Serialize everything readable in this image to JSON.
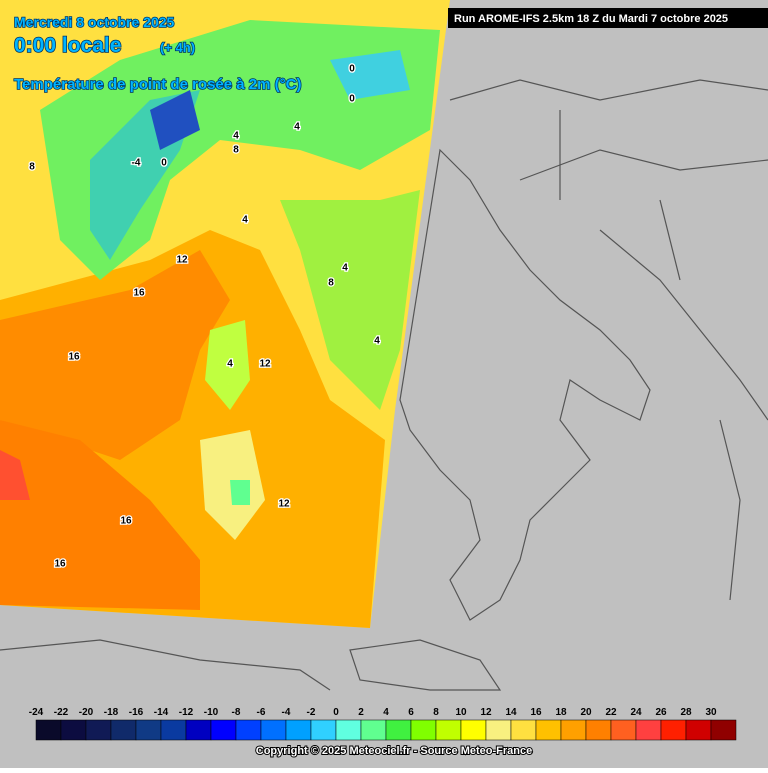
{
  "header": {
    "date": "Mercredi 8 octobre 2025",
    "time": "0:00 locale",
    "offset": "(+ 4h)",
    "parameter": "Température de point de rosée à 2m (°C)",
    "run": "Run AROME-IFS 2.5km 18 Z du Mardi 7 octobre 2025"
  },
  "map": {
    "contour_labels": [
      16,
      16,
      16,
      16,
      12,
      12,
      12,
      4,
      8,
      4,
      4,
      4,
      0,
      -4,
      4,
      0,
      0,
      8,
      4,
      8
    ]
  },
  "legend": {
    "labels": [
      -24,
      -22,
      -20,
      -18,
      -16,
      -14,
      -12,
      -10,
      -8,
      -6,
      -4,
      -2,
      0,
      2,
      4,
      6,
      8,
      10,
      12,
      14,
      16,
      18,
      20,
      22,
      24,
      26,
      28,
      30
    ],
    "colors": [
      "#0a0a2a",
      "#0c0c40",
      "#101a55",
      "#102a6a",
      "#103a85",
      "#0a3aa0",
      "#0000c0",
      "#0000ff",
      "#0040ff",
      "#0070ff",
      "#00a0ff",
      "#30d0ff",
      "#60ffe0",
      "#60ff90",
      "#40f040",
      "#80ff00",
      "#c0ff00",
      "#ffff00",
      "#f8f080",
      "#ffe040",
      "#ffc000",
      "#ffa000",
      "#ff8000",
      "#ff6020",
      "#ff4040",
      "#ff2000",
      "#d00000",
      "#900000"
    ]
  },
  "footer": {
    "copyright": "Copyright © 2025 Meteociel.fr - Source Meteo-France"
  }
}
